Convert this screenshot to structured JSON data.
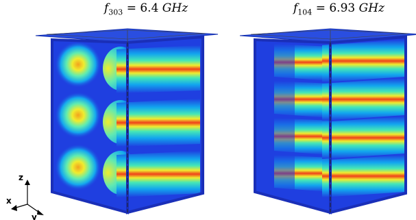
{
  "modes": [
    {
      "var": "f",
      "sub": "303",
      "eq": " = 6.4 ",
      "unit": "GHz",
      "left_lobes": 3,
      "right_stripes": 3
    },
    {
      "var": "f",
      "sub": "104",
      "eq": " = 6.93 ",
      "unit": "GHz",
      "left_lobes": 4,
      "right_stripes": 4
    }
  ],
  "axes": {
    "z": "z",
    "x": "x",
    "y": "y"
  },
  "colors": {
    "frame": "#1c3fd0",
    "field_low": "#1f3fe0",
    "field_high": "#e8200f"
  }
}
